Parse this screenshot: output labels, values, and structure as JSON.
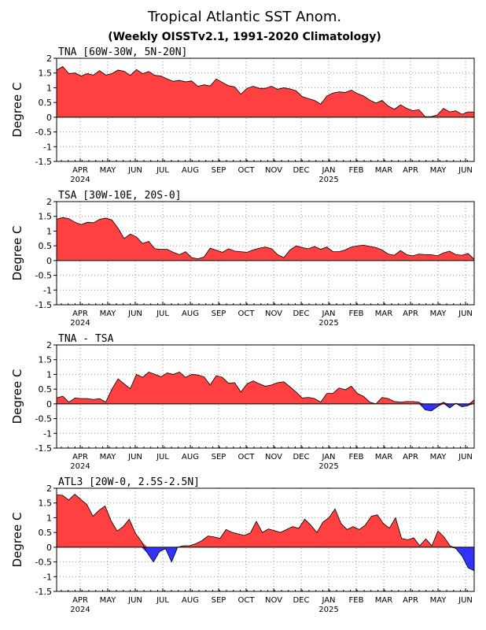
{
  "figure": {
    "title": "Tropical Atlantic SST Anom.",
    "subtitle": "(Weekly OISSTv2.1, 1991-2020 Climatology)"
  },
  "colors": {
    "positive": "#ff4040",
    "negative": "#3333ff",
    "grid": "#999999",
    "axis": "#000000"
  },
  "chart_data": [
    {
      "type": "area",
      "label": "TNA [60W-30W, 5N-20N]",
      "ylabel": "Degree C",
      "ylim": [
        -1.5,
        2
      ],
      "yticks": [
        "2",
        "1.5",
        "1",
        "0.5",
        "0",
        "-0.5",
        "-1",
        "-1.5"
      ],
      "xticks": [
        "APR",
        "MAY",
        "JUN",
        "JUL",
        "AUG",
        "SEP",
        "OCT",
        "NOV",
        "DEC",
        "JAN",
        "FEB",
        "MAR",
        "APR",
        "MAY",
        "JUN"
      ],
      "year_labels": [
        "2024",
        "2025"
      ],
      "grid": true,
      "values": [
        1.6,
        1.72,
        1.48,
        1.5,
        1.4,
        1.48,
        1.43,
        1.58,
        1.43,
        1.48,
        1.6,
        1.56,
        1.42,
        1.62,
        1.48,
        1.55,
        1.42,
        1.4,
        1.3,
        1.22,
        1.25,
        1.2,
        1.23,
        1.05,
        1.1,
        1.06,
        1.3,
        1.18,
        1.07,
        1.03,
        0.78,
        0.98,
        1.05,
        0.98,
        0.98,
        1.05,
        0.95,
        1.0,
        0.96,
        0.9,
        0.7,
        0.63,
        0.57,
        0.44,
        0.72,
        0.82,
        0.86,
        0.84,
        0.92,
        0.8,
        0.72,
        0.58,
        0.48,
        0.57,
        0.38,
        0.27,
        0.42,
        0.3,
        0.22,
        0.26,
        0.02,
        0.02,
        0.08,
        0.3,
        0.18,
        0.22,
        0.1,
        0.18,
        0.18
      ]
    },
    {
      "type": "area",
      "label": "TSA [30W-10E, 20S-0]",
      "ylabel": "Degree C",
      "ylim": [
        -1.5,
        2
      ],
      "yticks": [
        "2",
        "1.5",
        "1",
        "0.5",
        "0",
        "-0.5",
        "-1",
        "-1.5"
      ],
      "xticks": [
        "APR",
        "MAY",
        "JUN",
        "JUL",
        "AUG",
        "SEP",
        "OCT",
        "NOV",
        "DEC",
        "JAN",
        "FEB",
        "MAR",
        "APR",
        "MAY",
        "JUN"
      ],
      "year_labels": [
        "2024",
        "2025"
      ],
      "grid": true,
      "values": [
        1.4,
        1.46,
        1.42,
        1.3,
        1.22,
        1.3,
        1.28,
        1.4,
        1.44,
        1.38,
        1.1,
        0.75,
        0.9,
        0.8,
        0.58,
        0.65,
        0.4,
        0.38,
        0.38,
        0.28,
        0.2,
        0.3,
        0.1,
        0.06,
        0.12,
        0.42,
        0.35,
        0.28,
        0.4,
        0.32,
        0.3,
        0.28,
        0.36,
        0.42,
        0.46,
        0.4,
        0.2,
        0.1,
        0.36,
        0.5,
        0.44,
        0.4,
        0.48,
        0.38,
        0.46,
        0.3,
        0.3,
        0.36,
        0.46,
        0.5,
        0.52,
        0.48,
        0.44,
        0.36,
        0.22,
        0.18,
        0.34,
        0.2,
        0.16,
        0.22,
        0.2,
        0.2,
        0.16,
        0.26,
        0.32,
        0.2,
        0.18,
        0.24,
        0.04
      ]
    },
    {
      "type": "area",
      "label": "TNA - TSA",
      "ylabel": "Degree C",
      "ylim": [
        -1.5,
        2
      ],
      "yticks": [
        "2",
        "1.5",
        "1",
        "0.5",
        "0",
        "-0.5",
        "-1",
        "-1.5"
      ],
      "xticks": [
        "APR",
        "MAY",
        "JUN",
        "JUL",
        "AUG",
        "SEP",
        "OCT",
        "NOV",
        "DEC",
        "JAN",
        "FEB",
        "MAR",
        "APR",
        "MAY",
        "JUN"
      ],
      "year_labels": [
        "2024",
        "2025"
      ],
      "grid": true,
      "values": [
        0.2,
        0.26,
        0.06,
        0.2,
        0.18,
        0.18,
        0.15,
        0.18,
        0.06,
        0.5,
        0.85,
        0.68,
        0.52,
        1.0,
        0.9,
        1.08,
        1.0,
        0.92,
        1.05,
        1.0,
        1.08,
        0.9,
        1.0,
        0.98,
        0.92,
        0.64,
        0.96,
        0.9,
        0.7,
        0.72,
        0.4,
        0.68,
        0.78,
        0.68,
        0.6,
        0.64,
        0.72,
        0.75,
        0.58,
        0.4,
        0.2,
        0.22,
        0.18,
        0.06,
        0.35,
        0.36,
        0.54,
        0.48,
        0.6,
        0.35,
        0.25,
        0.06,
        0.0,
        0.22,
        0.18,
        0.08,
        0.06,
        0.08,
        0.08,
        0.06,
        -0.2,
        -0.24,
        -0.1,
        0.06,
        -0.14,
        0.02,
        -0.1,
        -0.06,
        0.14
      ]
    },
    {
      "type": "area",
      "label": "ATL3 [20W-0, 2.5S-2.5N]",
      "ylabel": "Degree C",
      "ylim": [
        -1.5,
        2
      ],
      "yticks": [
        "2",
        "1.5",
        "1",
        "0.5",
        "0",
        "-0.5",
        "-1",
        "-1.5"
      ],
      "xticks": [
        "APR",
        "MAY",
        "JUN",
        "JUL",
        "AUG",
        "SEP",
        "OCT",
        "NOV",
        "DEC",
        "JAN",
        "FEB",
        "MAR",
        "APR",
        "MAY",
        "JUN"
      ],
      "year_labels": [
        "2024",
        "2025"
      ],
      "grid": true,
      "values": [
        1.78,
        1.76,
        1.6,
        1.8,
        1.62,
        1.45,
        1.05,
        1.25,
        1.4,
        0.9,
        0.55,
        0.7,
        0.95,
        0.48,
        0.2,
        -0.2,
        -0.5,
        -0.15,
        -0.05,
        -0.5,
        0.0,
        0.05,
        0.05,
        0.12,
        0.22,
        0.38,
        0.35,
        0.3,
        0.6,
        0.5,
        0.45,
        0.4,
        0.48,
        0.88,
        0.5,
        0.62,
        0.56,
        0.5,
        0.6,
        0.7,
        0.64,
        0.95,
        0.75,
        0.5,
        0.85,
        1.0,
        1.3,
        0.8,
        0.6,
        0.7,
        0.6,
        0.75,
        1.05,
        1.1,
        0.8,
        0.65,
        1.0,
        0.3,
        0.25,
        0.32,
        0.05,
        0.28,
        0.05,
        0.55,
        0.35,
        0.05,
        -0.05,
        -0.3,
        -0.7,
        -0.8
      ]
    }
  ]
}
